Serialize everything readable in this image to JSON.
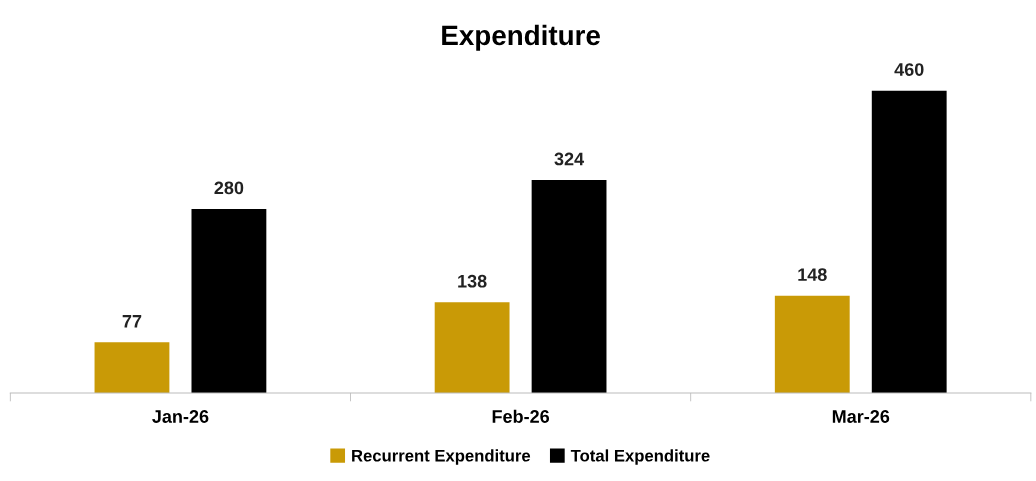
{
  "chart_data": {
    "type": "bar",
    "title": "Expenditure",
    "categories": [
      "Jan-26",
      "Feb-26",
      "Mar-26"
    ],
    "series": [
      {
        "name": "Recurrent Expenditure",
        "color": "#c99a06",
        "values": [
          77,
          138,
          148
        ]
      },
      {
        "name": "Total Expenditure",
        "color": "#000000",
        "values": [
          280,
          324,
          460
        ]
      }
    ],
    "data_labels": true,
    "grid": false,
    "legend": "bottom"
  }
}
